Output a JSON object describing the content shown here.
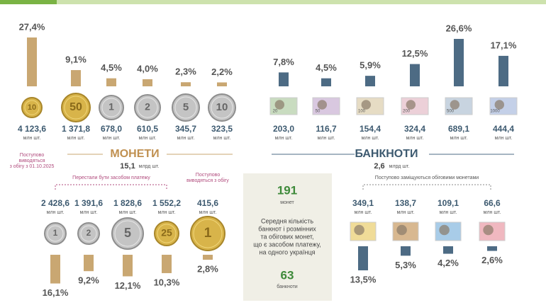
{
  "unit": "млн шт.",
  "top_coins": {
    "values": [
      27.4,
      9.1,
      4.5,
      4.0,
      2.3,
      2.2
    ],
    "value_labels": [
      "27,4%",
      "9,1%",
      "4,5%",
      "4,0%",
      "2,3%",
      "2,2%"
    ],
    "counts": [
      "4 123,6",
      "1 371,8",
      "678,0",
      "610,5",
      "345,7",
      "323,5"
    ],
    "coin_labels": [
      "10",
      "50",
      "1",
      "2",
      "5",
      "10"
    ],
    "note": [
      "Поступово",
      "виводяться",
      "з обігу з 01.10.2025"
    ]
  },
  "coins_title": "МОНЕТИ",
  "coins_total": "15,1",
  "coins_total_unit": "млрд шт.",
  "top_notes": {
    "values": [
      7.8,
      4.5,
      5.9,
      12.5,
      26.6,
      17.1
    ],
    "value_labels": [
      "7,8%",
      "4,5%",
      "5,9%",
      "12,5%",
      "26,6%",
      "17,1%"
    ],
    "counts": [
      "203,0",
      "116,7",
      "154,4",
      "324,4",
      "689,1",
      "444,4"
    ],
    "note_labels": [
      "20",
      "50",
      "100",
      "200",
      "500",
      "1000"
    ]
  },
  "notes_title": "БАНКНОТИ",
  "notes_total": "2,6",
  "notes_total_unit": "млрд шт.",
  "bottom_coins": {
    "values": [
      16.1,
      9.2,
      12.1,
      10.3,
      2.8
    ],
    "value_labels": [
      "16,1%",
      "9,2%",
      "12,1%",
      "10,3%",
      "2,8%"
    ],
    "counts": [
      "2 428,6",
      "1 391,6",
      "1 828,6",
      "1 552,2",
      "415,6"
    ],
    "coin_labels": [
      "1",
      "2",
      "5",
      "25",
      "1"
    ],
    "note_left": "Перестали бути засобом платежу",
    "note_right": [
      "Поступово",
      "виводяться з обігу"
    ]
  },
  "bottom_notes": {
    "values": [
      13.5,
      5.3,
      4.2,
      2.6
    ],
    "value_labels": [
      "13,5%",
      "5,3%",
      "4,2%",
      "2,6%"
    ],
    "counts": [
      "349,1",
      "138,7",
      "109,1",
      "66,6"
    ],
    "note": "Поступово заміщуються обіговими монетами"
  },
  "summary": {
    "coins_count": "191",
    "coins_label": "монет",
    "text": [
      "Середня кількість",
      "банкнот і розмінних",
      "та обігових монет,",
      "що є засобом платежу,",
      "на одного українця"
    ],
    "notes_count": "63",
    "notes_label": "банкноти"
  }
}
